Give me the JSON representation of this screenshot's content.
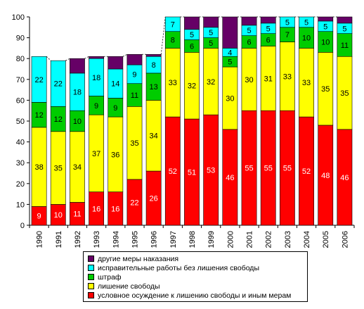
{
  "chart_data": {
    "type": "bar",
    "stacked": true,
    "title": "",
    "xlabel": "",
    "ylabel": "",
    "ylim": [
      0,
      100
    ],
    "yticks": [
      0,
      10,
      20,
      30,
      40,
      50,
      60,
      70,
      80,
      90,
      100
    ],
    "grid": false,
    "legend_position": "bottom",
    "categories": [
      "1990",
      "1991",
      "1992",
      "1993",
      "1994",
      "1995",
      "1996",
      "1997",
      "1998",
      "1999",
      "2000",
      "2001",
      "2002",
      "2003",
      "2004",
      "2005",
      "2006"
    ],
    "series": [
      {
        "name": "условное осуждение к лишению свободы и иным мерам",
        "color": "#ff0000",
        "values": [
          9,
          10,
          11,
          16,
          16,
          22,
          26,
          52,
          51,
          53,
          46,
          55,
          55,
          55,
          52,
          48,
          46
        ]
      },
      {
        "name": "лишение свободы",
        "color": "#ffff00",
        "values": [
          38,
          35,
          34,
          37,
          36,
          35,
          34,
          33,
          32,
          32,
          30,
          30,
          31,
          33,
          33,
          35,
          35
        ]
      },
      {
        "name": "штраф",
        "color": "#00cc00",
        "values": [
          12,
          12,
          10,
          9,
          9,
          11,
          13,
          8,
          6,
          5,
          5,
          6,
          6,
          7,
          10,
          10,
          11
        ]
      },
      {
        "name": "исправительные работы без лишения свободы",
        "color": "#00ffff",
        "values": [
          22,
          22,
          18,
          18,
          14,
          9,
          8,
          7,
          5,
          5,
          4,
          5,
          5,
          5,
          5,
          5,
          5
        ]
      },
      {
        "name": "другие меры наказания",
        "color": "#660066",
        "values": [
          0,
          0,
          7,
          1,
          6,
          5,
          1,
          0,
          6,
          5,
          15,
          4,
          3,
          0,
          0,
          2,
          3
        ]
      }
    ],
    "legend_order": [
      "другие меры наказания",
      "исправительные работы без лишения свободы",
      "штраф",
      "лишение свободы",
      "условное осуждение к лишению свободы и иным мерам"
    ]
  }
}
